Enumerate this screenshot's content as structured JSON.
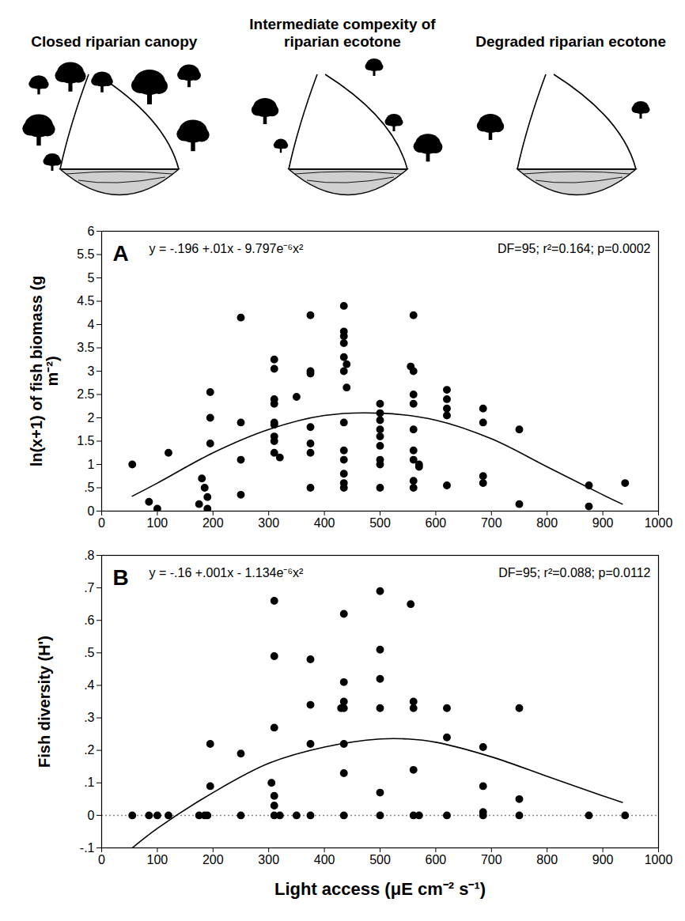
{
  "illustrations": {
    "titles": [
      "Closed riparian canopy",
      "Intermediate compexity of riparian ecotone",
      "Degraded riparian ecotone"
    ]
  },
  "chart_data": [
    {
      "type": "scatter",
      "panel_label": "A",
      "equation": "y = -.196 +.01x - 9.797e⁻⁶x²",
      "statistics": "DF=95; r²=0.164; p=0.0002",
      "ylabel": "ln(x+1) of fish biomass (g m⁻²)",
      "color": "#000000",
      "marker": "circle",
      "xlim": [
        0,
        1000
      ],
      "xticks": [
        0,
        100,
        200,
        300,
        400,
        500,
        600,
        700,
        800,
        900,
        1000
      ],
      "ylim": [
        0,
        6
      ],
      "yticks": [
        0,
        {
          "value": 0.5,
          "label": ".5"
        },
        1,
        1.5,
        2,
        2.5,
        3,
        3.5,
        4,
        4.5,
        5,
        5.5,
        6
      ],
      "x": [
        55,
        85,
        100,
        120,
        175,
        180,
        185,
        190,
        190,
        195,
        195,
        195,
        250,
        250,
        250,
        250,
        310,
        310,
        310,
        310,
        310,
        310,
        310,
        310,
        310,
        320,
        350,
        375,
        375,
        375,
        375,
        375,
        375,
        375,
        435,
        435,
        435,
        435,
        435,
        435,
        440,
        440,
        435,
        435,
        435,
        435,
        435,
        435,
        500,
        500,
        500,
        500,
        500,
        500,
        500,
        500,
        500,
        555,
        560,
        560,
        560,
        560,
        560,
        560,
        560,
        560,
        560,
        570,
        570,
        620,
        620,
        620,
        620,
        620,
        685,
        685,
        685,
        685,
        750,
        750,
        875,
        875,
        940
      ],
      "values": [
        1.0,
        0.2,
        0.05,
        1.25,
        0.15,
        0.7,
        0.5,
        0.3,
        0.05,
        2.55,
        2.0,
        1.45,
        4.15,
        1.9,
        1.1,
        0.35,
        3.25,
        3.05,
        2.4,
        2.3,
        1.9,
        1.85,
        1.6,
        1.5,
        1.25,
        1.15,
        2.45,
        4.2,
        3.0,
        2.95,
        1.8,
        1.45,
        1.25,
        0.5,
        4.4,
        3.85,
        3.75,
        3.6,
        3.3,
        3.0,
        3.15,
        2.65,
        1.9,
        1.3,
        1.1,
        0.8,
        0.6,
        0.5,
        2.3,
        2.1,
        1.95,
        1.75,
        1.6,
        1.4,
        1.1,
        1.0,
        0.5,
        3.1,
        4.2,
        3.0,
        2.5,
        2.3,
        1.75,
        1.3,
        1.1,
        0.65,
        0.5,
        1.0,
        0.95,
        2.6,
        2.4,
        2.2,
        2.05,
        0.55,
        2.2,
        1.9,
        0.75,
        0.6,
        1.75,
        0.15,
        0.55,
        0.1,
        0.6
      ],
      "fit": {
        "type": "line",
        "line_style": "solid",
        "color": "#000000",
        "x": [
          55,
          100,
          200,
          300,
          400,
          500,
          600,
          700,
          800,
          900,
          935
        ],
        "values": [
          0.32,
          0.6,
          1.25,
          1.75,
          2.05,
          2.1,
          1.95,
          1.55,
          0.95,
          0.35,
          0.15
        ]
      }
    },
    {
      "type": "scatter",
      "panel_label": "B",
      "equation": "y = -.16 +.001x - 1.134e⁻⁶x²",
      "statistics": "DF=95; r²=0.088; p=0.0112",
      "ylabel": "Fish diversity (H')",
      "xlabel": "Light access (μE cm⁻² s⁻¹)",
      "color": "#000000",
      "marker": "circle",
      "xlim": [
        0,
        1000
      ],
      "xticks": [
        0,
        100,
        200,
        300,
        400,
        500,
        600,
        700,
        800,
        900,
        1000
      ],
      "ylim": [
        -0.1,
        0.8
      ],
      "yticks": [
        {
          "value": -0.1,
          "label": "-.1"
        },
        0,
        {
          "value": 0.1,
          "label": ".1"
        },
        {
          "value": 0.2,
          "label": ".2"
        },
        {
          "value": 0.3,
          "label": ".3"
        },
        {
          "value": 0.4,
          "label": ".4"
        },
        {
          "value": 0.5,
          "label": ".5"
        },
        {
          "value": 0.6,
          "label": ".6"
        },
        {
          "value": 0.7,
          "label": ".7"
        },
        {
          "value": 0.8,
          "label": ".8"
        }
      ],
      "baseline": {
        "value": 0,
        "line_style": "dotted"
      },
      "x": [
        55,
        85,
        100,
        120,
        175,
        185,
        190,
        195,
        195,
        250,
        250,
        305,
        310,
        310,
        310,
        310,
        310,
        310,
        320,
        350,
        375,
        375,
        375,
        375,
        430,
        435,
        435,
        435,
        435,
        435,
        435,
        435,
        500,
        500,
        500,
        500,
        500,
        500,
        555,
        560,
        560,
        560,
        560,
        570,
        620,
        620,
        620,
        685,
        685,
        685,
        685,
        750,
        750,
        750,
        875,
        940
      ],
      "values": [
        0,
        0,
        0,
        0,
        0,
        0,
        0,
        0.22,
        0.09,
        0.19,
        0,
        0.1,
        0.66,
        0.49,
        0.27,
        0.06,
        0.03,
        0,
        0,
        0,
        0.48,
        0.34,
        0.22,
        0,
        0.33,
        0.62,
        0.41,
        0.35,
        0.33,
        0.22,
        0.13,
        0,
        0.69,
        0.51,
        0.42,
        0.33,
        0.07,
        0,
        0.65,
        0.35,
        0.33,
        0.14,
        0,
        0,
        0.33,
        0.24,
        0,
        0.21,
        0.09,
        0.01,
        0,
        0.33,
        0.05,
        0,
        0,
        0
      ],
      "fit": {
        "type": "line",
        "line_style": "solid",
        "color": "#000000",
        "x": [
          55,
          100,
          200,
          300,
          400,
          500,
          550,
          600,
          700,
          800,
          900,
          935
        ],
        "values": [
          -0.1,
          -0.04,
          0.07,
          0.16,
          0.21,
          0.235,
          0.235,
          0.225,
          0.18,
          0.12,
          0.06,
          0.04
        ]
      }
    }
  ]
}
